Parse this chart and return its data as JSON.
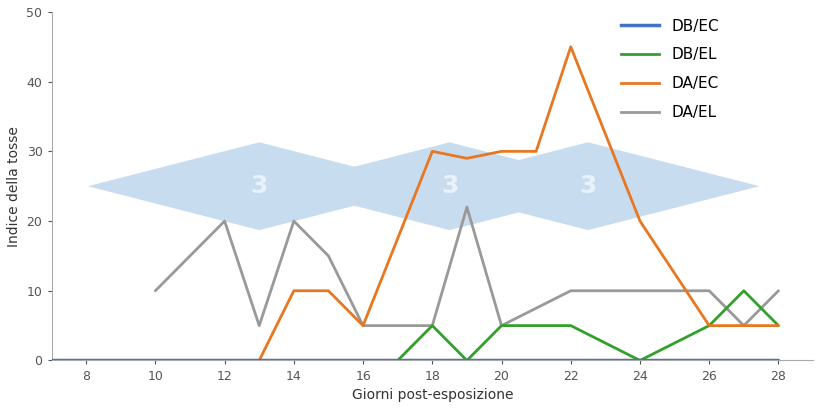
{
  "DB_EC": {
    "x": [
      7,
      28
    ],
    "y": [
      0,
      0
    ],
    "color": "#4472C4",
    "label": "DB/EC",
    "linewidth": 2.5
  },
  "DB_EL": {
    "x": [
      17,
      18,
      19,
      20,
      22,
      24,
      26,
      27,
      28
    ],
    "y": [
      0,
      5,
      0,
      5,
      5,
      0,
      5,
      10,
      5
    ],
    "color": "#33A02C",
    "label": "DB/EL",
    "linewidth": 2.0
  },
  "DA_EC": {
    "x": [
      13,
      14,
      15,
      16,
      18,
      19,
      20,
      21,
      22,
      24,
      26,
      27,
      28
    ],
    "y": [
      0,
      10,
      10,
      5,
      30,
      29,
      30,
      30,
      45,
      20,
      5,
      5,
      5
    ],
    "color": "#E87722",
    "label": "DA/EC",
    "linewidth": 2.0
  },
  "DA_EL": {
    "x": [
      10,
      12,
      13,
      14,
      15,
      16,
      18,
      19,
      20,
      22,
      24,
      26,
      27,
      28
    ],
    "y": [
      10,
      20,
      5,
      20,
      15,
      5,
      5,
      22,
      5,
      10,
      10,
      10,
      5,
      10
    ],
    "color": "#999999",
    "label": "DA/EL",
    "linewidth": 2.0
  },
  "xlabel": "Giorni post-esposizione",
  "ylabel": "Indice della tosse",
  "ylim": [
    0,
    50
  ],
  "xlim": [
    7,
    29
  ],
  "xticks": [
    8,
    10,
    12,
    14,
    16,
    18,
    20,
    22,
    24,
    26,
    28
  ],
  "yticks": [
    0,
    10,
    20,
    30,
    40,
    50
  ],
  "background_color": "#ffffff",
  "watermark_color": "#C8DCF0",
  "watermark_text_color": "#E8F2FA",
  "legend_fontsize": 11,
  "axis_fontsize": 10,
  "tick_fontsize": 9
}
